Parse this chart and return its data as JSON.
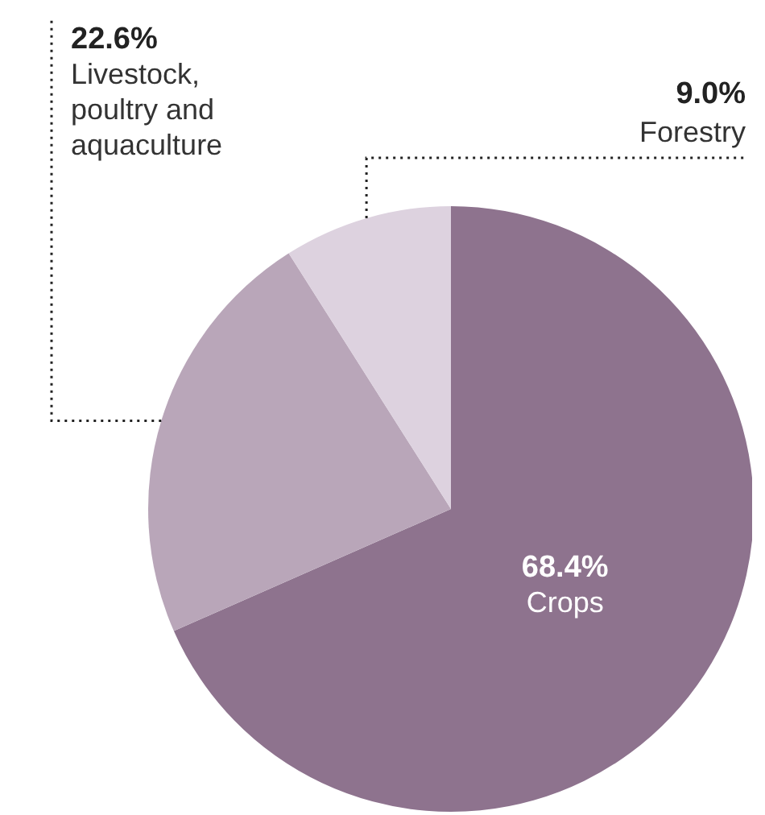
{
  "chart_data": {
    "type": "pie",
    "categories": [
      "Crops",
      "Livestock, poultry and aquaculture",
      "Forestry"
    ],
    "values": [
      68.4,
      22.6,
      9.0
    ],
    "value_labels": [
      "68.4%",
      "22.6%",
      "9.0%"
    ],
    "colors": [
      "#8e738e",
      "#b9a6b9",
      "#ddd2df"
    ],
    "legend": false
  }
}
